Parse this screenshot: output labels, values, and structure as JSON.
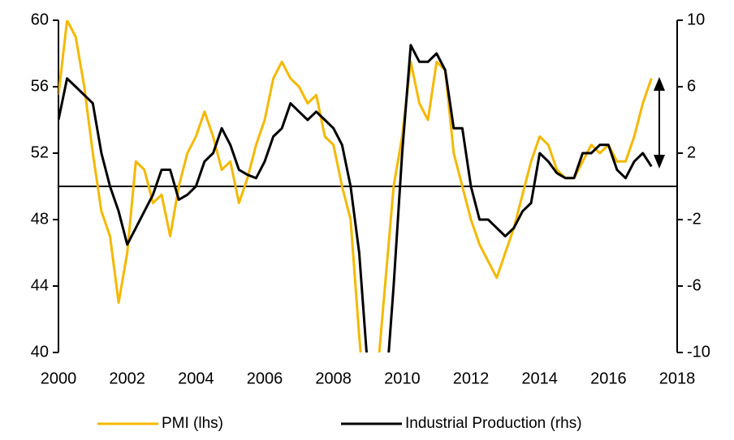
{
  "chart_data": {
    "type": "line",
    "x": [
      2000,
      2000.25,
      2000.5,
      2000.75,
      2001,
      2001.25,
      2001.5,
      2001.75,
      2002,
      2002.25,
      2002.5,
      2002.75,
      2003,
      2003.25,
      2003.5,
      2003.75,
      2004,
      2004.25,
      2004.5,
      2004.75,
      2005,
      2005.25,
      2005.5,
      2005.75,
      2006,
      2006.25,
      2006.5,
      2006.75,
      2007,
      2007.25,
      2007.5,
      2007.75,
      2008,
      2008.25,
      2008.5,
      2008.75,
      2009,
      2009.25,
      2009.5,
      2009.75,
      2010,
      2010.25,
      2010.5,
      2010.75,
      2011,
      2011.25,
      2011.5,
      2011.75,
      2012,
      2012.25,
      2012.5,
      2012.75,
      2013,
      2013.25,
      2013.5,
      2013.75,
      2014,
      2014.25,
      2014.5,
      2014.75,
      2015,
      2015.25,
      2015.5,
      2015.75,
      2016,
      2016.25,
      2016.5,
      2016.75,
      2017,
      2017.25
    ],
    "series": [
      {
        "name": "PMI (lhs)",
        "color": "#f5b800",
        "axis": "y",
        "values": [
          55.5,
          60,
          59,
          56,
          52,
          48.5,
          47,
          43,
          46,
          51.5,
          51,
          49,
          49.5,
          47,
          50,
          52,
          53,
          54.5,
          53,
          51,
          51.5,
          49,
          50.5,
          52.5,
          54,
          56.5,
          57.5,
          56.5,
          56,
          55,
          55.5,
          53,
          52.5,
          50,
          48,
          41,
          35,
          38,
          44,
          50,
          53,
          57.5,
          55,
          54,
          57.5,
          57,
          52,
          50,
          48,
          46.5,
          45.5,
          44.5,
          46,
          47.5,
          49.5,
          51.5,
          53,
          52.5,
          51,
          50.5,
          50.5,
          51.5,
          52.5,
          52,
          52.5,
          51.5,
          51.5,
          53,
          55,
          56.5
        ]
      },
      {
        "name": "Industrial Production (rhs)",
        "color": "#000000",
        "axis": "y2",
        "values": [
          4,
          6.5,
          6,
          5.5,
          5,
          2,
          0,
          -1.5,
          -3.5,
          -2.5,
          -1.5,
          -0.5,
          1,
          1,
          -0.8,
          -0.5,
          0,
          1.5,
          2,
          3.5,
          2.5,
          1,
          0.7,
          0.5,
          1.5,
          3,
          3.5,
          5,
          4.5,
          4,
          4.5,
          4,
          3.5,
          2.5,
          0,
          -4,
          -11,
          -15,
          -13,
          -6,
          2,
          8.5,
          7.5,
          7.5,
          8,
          7,
          3.5,
          3.5,
          0,
          -2,
          -2,
          -2.5,
          -3,
          -2.5,
          -1.5,
          -1,
          2,
          1.5,
          0.8,
          0.5,
          0.5,
          2,
          2,
          2.5,
          2.5,
          1,
          0.5,
          1.5,
          2,
          1.2
        ]
      }
    ],
    "xlim": [
      2000,
      2018
    ],
    "xticks": [
      2000,
      2002,
      2004,
      2006,
      2008,
      2010,
      2012,
      2014,
      2016,
      2018
    ],
    "ylim": [
      40,
      60
    ],
    "yticks": [
      40,
      44,
      48,
      52,
      56,
      60
    ],
    "y2lim": [
      -10,
      10
    ],
    "y2ticks": [
      -10,
      -6,
      -2,
      2,
      6,
      10
    ]
  }
}
